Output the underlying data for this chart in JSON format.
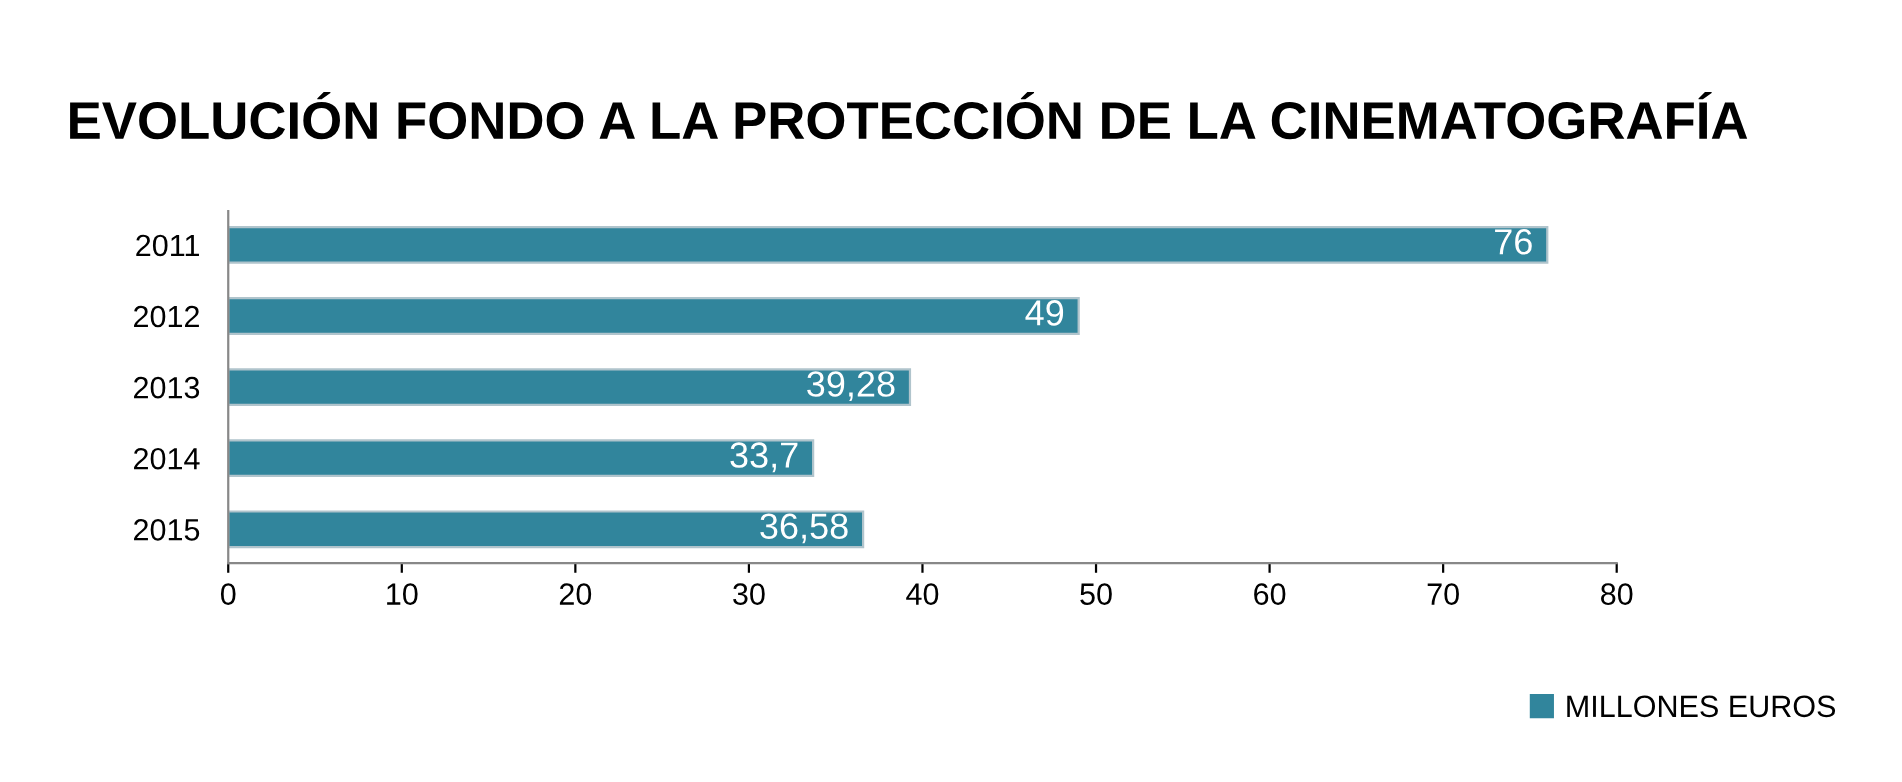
{
  "chart_data": {
    "type": "bar",
    "orientation": "horizontal",
    "title": "EVOLUCIÓN FONDO A LA PROTECCIÓN DE LA CINEMATOGRAFÍA",
    "categories": [
      "2011",
      "2012",
      "2013",
      "2014",
      "2015"
    ],
    "series": [
      {
        "name": "MILLONES EUROS",
        "color": "#31859c",
        "values": [
          76,
          49,
          39.28,
          33.7,
          36.58
        ],
        "value_labels": [
          "76",
          "49",
          "39,28",
          "33,7",
          "36,58"
        ]
      }
    ],
    "xlim": [
      0,
      80
    ],
    "xticks": [
      0,
      10,
      20,
      30,
      40,
      50,
      60,
      70,
      80
    ],
    "grid": false,
    "legend": "bottom right"
  }
}
